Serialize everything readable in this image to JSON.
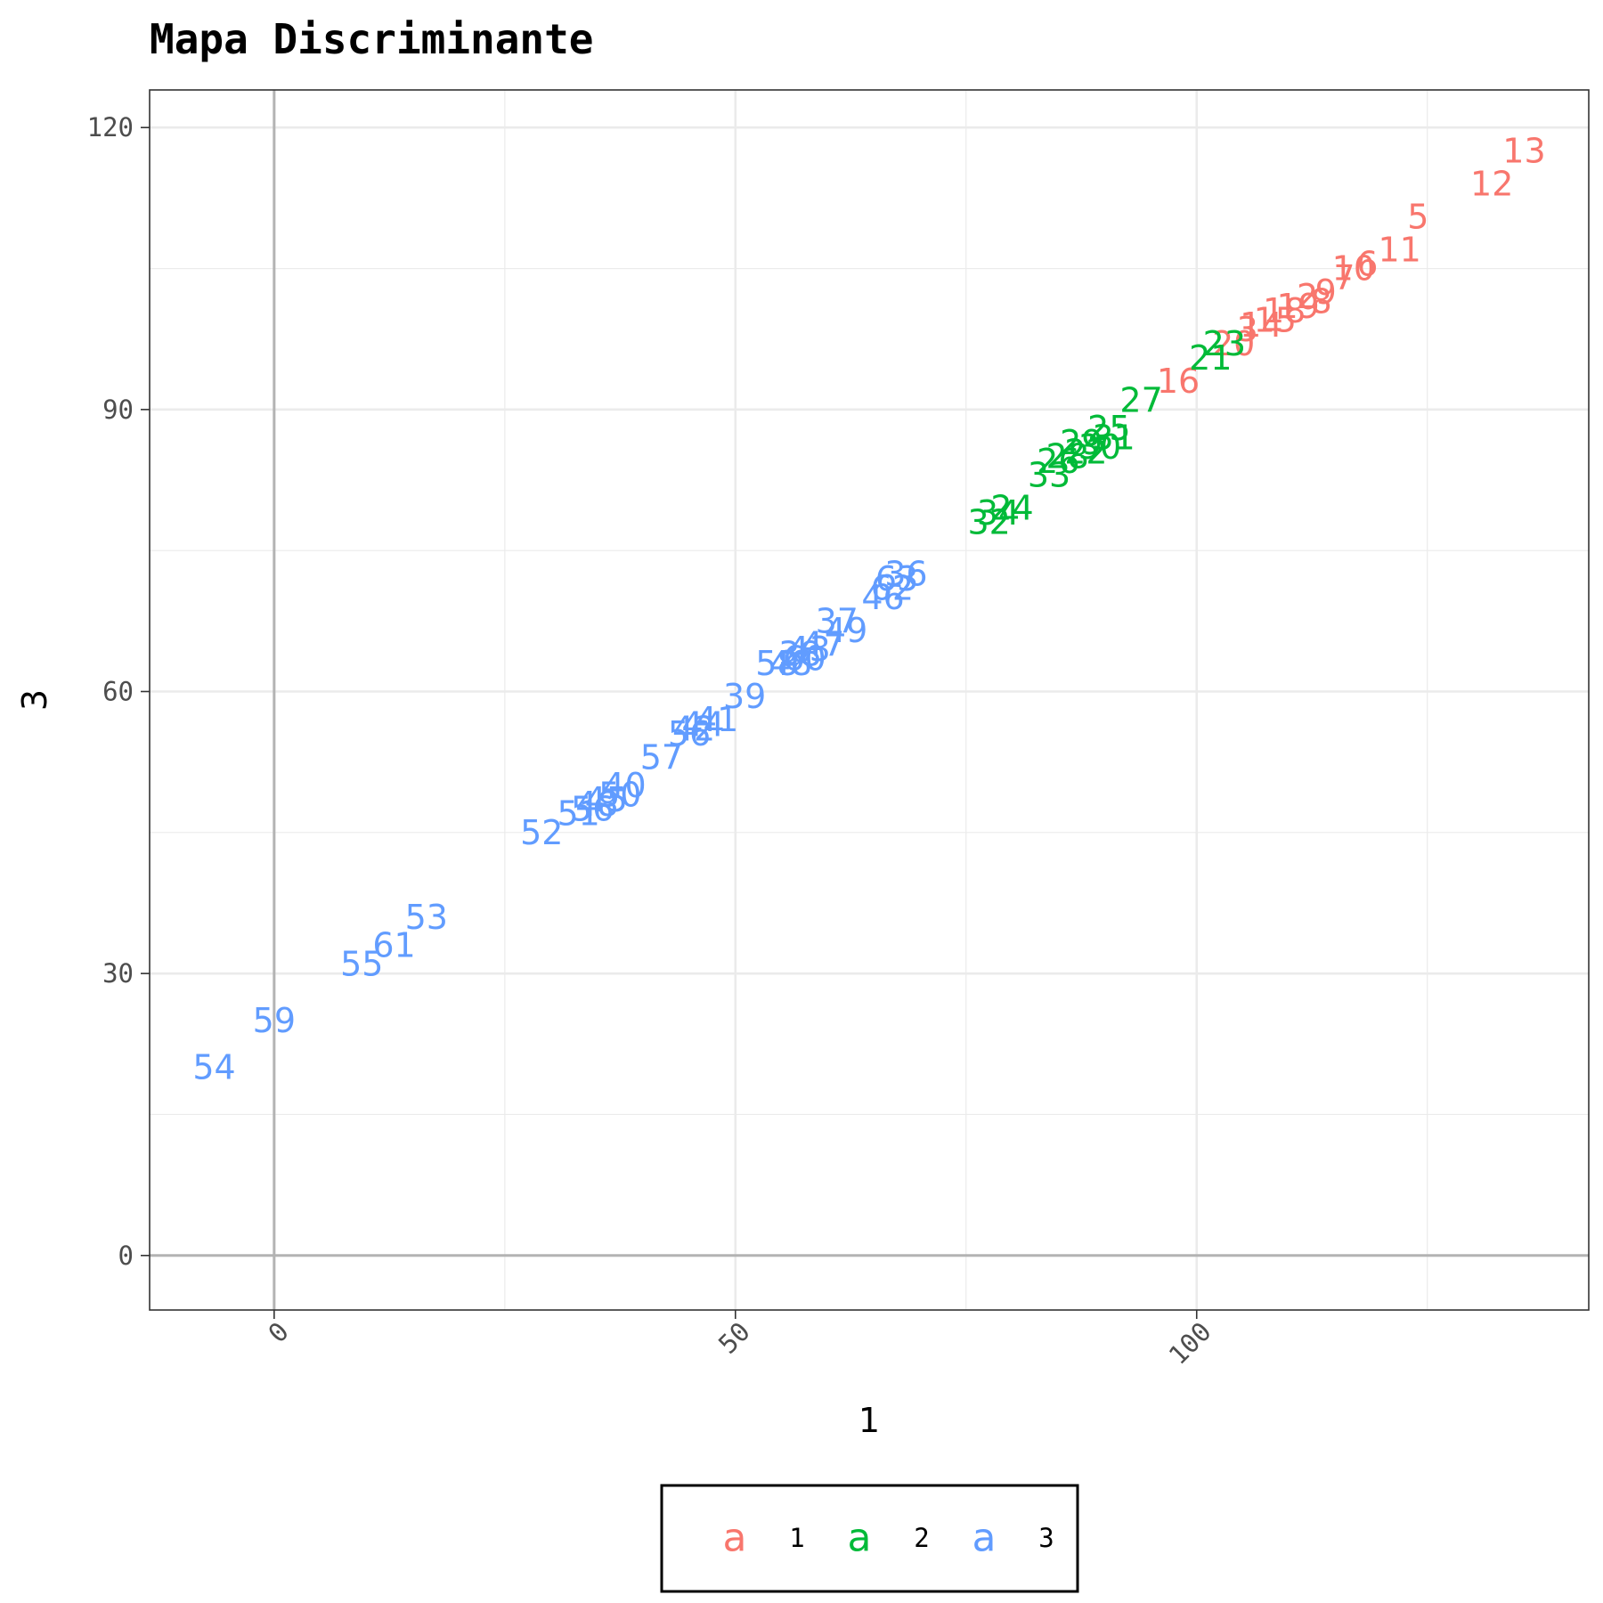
{
  "chart_data": {
    "type": "scatter",
    "title": "Mapa Discriminante",
    "xlabel": "1",
    "ylabel": "3",
    "xlim": [
      -13.5,
      142.5
    ],
    "ylim": [
      -5.8,
      124
    ],
    "xticks": [
      0,
      50,
      100
    ],
    "yticks": [
      0,
      30,
      60,
      90,
      120
    ],
    "grid": true,
    "legend_position": "bottom",
    "legend_key_glyph": "a",
    "series": [
      {
        "name": "1",
        "color": "#F8766D",
        "points": [
          {
            "label": "13",
            "x": 135.5,
            "y": 117.5
          },
          {
            "label": "12",
            "x": 132.0,
            "y": 114.0
          },
          {
            "label": "5",
            "x": 124.0,
            "y": 110.5
          },
          {
            "label": "11",
            "x": 122.0,
            "y": 107.0
          },
          {
            "label": "6",
            "x": 118.5,
            "y": 105.5
          },
          {
            "label": "10",
            "x": 117.0,
            "y": 105.0
          },
          {
            "label": "7",
            "x": 116.0,
            "y": 104.0
          },
          {
            "label": "9",
            "x": 114.0,
            "y": 102.5
          },
          {
            "label": "8",
            "x": 113.5,
            "y": 101.5
          },
          {
            "label": "2",
            "x": 112.0,
            "y": 102.0
          },
          {
            "label": "19",
            "x": 111.0,
            "y": 101.0
          },
          {
            "label": "18",
            "x": 109.5,
            "y": 100.5
          },
          {
            "label": "15",
            "x": 108.5,
            "y": 99.5
          },
          {
            "label": "14",
            "x": 107.0,
            "y": 99.0
          },
          {
            "label": "3",
            "x": 105.5,
            "y": 98.5
          },
          {
            "label": "20",
            "x": 104.0,
            "y": 97.0
          },
          {
            "label": "16",
            "x": 98.0,
            "y": 93.0
          }
        ]
      },
      {
        "name": "2",
        "color": "#00BA38",
        "points": [
          {
            "label": "23",
            "x": 103.0,
            "y": 97.0
          },
          {
            "label": "21",
            "x": 101.5,
            "y": 95.5
          },
          {
            "label": "27",
            "x": 94.0,
            "y": 91.0
          },
          {
            "label": "25",
            "x": 90.5,
            "y": 88.0
          },
          {
            "label": "31",
            "x": 91.0,
            "y": 87.0
          },
          {
            "label": "30",
            "x": 89.5,
            "y": 86.0
          },
          {
            "label": "29",
            "x": 87.5,
            "y": 86.5
          },
          {
            "label": "22",
            "x": 88.0,
            "y": 85.5
          },
          {
            "label": "28",
            "x": 86.0,
            "y": 85.0
          },
          {
            "label": "26",
            "x": 85.0,
            "y": 84.5
          },
          {
            "label": "33",
            "x": 84.0,
            "y": 83.0
          },
          {
            "label": "24",
            "x": 80.0,
            "y": 79.5
          },
          {
            "label": "34",
            "x": 78.5,
            "y": 79.0
          },
          {
            "label": "32",
            "x": 77.5,
            "y": 78.0
          }
        ]
      },
      {
        "name": "3",
        "color": "#619CFF",
        "points": [
          {
            "label": "36",
            "x": 68.5,
            "y": 72.5
          },
          {
            "label": "63",
            "x": 67.5,
            "y": 72.0
          },
          {
            "label": "62",
            "x": 67.0,
            "y": 71.0
          },
          {
            "label": "46",
            "x": 66.0,
            "y": 70.0
          },
          {
            "label": "37",
            "x": 61.0,
            "y": 67.5
          },
          {
            "label": "49",
            "x": 62.0,
            "y": 66.5
          },
          {
            "label": "47",
            "x": 59.5,
            "y": 65.0
          },
          {
            "label": "43",
            "x": 58.0,
            "y": 64.5
          },
          {
            "label": "38",
            "x": 57.0,
            "y": 64.0
          },
          {
            "label": "60",
            "x": 57.5,
            "y": 63.5
          },
          {
            "label": "48",
            "x": 56.0,
            "y": 63.0
          },
          {
            "label": "58",
            "x": 54.5,
            "y": 63.0
          },
          {
            "label": "39",
            "x": 51.0,
            "y": 59.5
          },
          {
            "label": "41",
            "x": 48.0,
            "y": 57.0
          },
          {
            "label": "44",
            "x": 46.5,
            "y": 56.5
          },
          {
            "label": "42",
            "x": 45.5,
            "y": 56.0
          },
          {
            "label": "56",
            "x": 45.0,
            "y": 55.5
          },
          {
            "label": "57",
            "x": 42.0,
            "y": 53.0
          },
          {
            "label": "40",
            "x": 38.0,
            "y": 50.0
          },
          {
            "label": "50",
            "x": 37.5,
            "y": 49.0
          },
          {
            "label": "45",
            "x": 36.0,
            "y": 48.5
          },
          {
            "label": "48",
            "x": 35.0,
            "y": 48.0
          },
          {
            "label": "56",
            "x": 34.5,
            "y": 47.5
          },
          {
            "label": "51",
            "x": 33.0,
            "y": 47.0
          },
          {
            "label": "52",
            "x": 29.0,
            "y": 45.0
          },
          {
            "label": "53",
            "x": 16.5,
            "y": 36.0
          },
          {
            "label": "61",
            "x": 13.0,
            "y": 33.0
          },
          {
            "label": "55",
            "x": 9.5,
            "y": 31.0
          },
          {
            "label": "59",
            "x": 0.0,
            "y": 25.0
          },
          {
            "label": "54",
            "x": -6.5,
            "y": 20.0
          }
        ]
      }
    ]
  }
}
